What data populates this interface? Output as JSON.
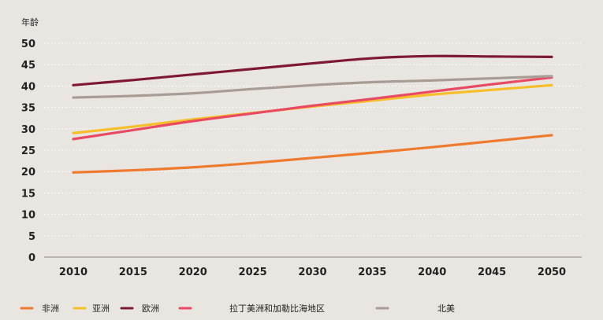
{
  "chart_data": {
    "type": "line",
    "title": "",
    "xlabel": "",
    "ylabel": "年龄",
    "x": [
      2010,
      2015,
      2020,
      2025,
      2030,
      2035,
      2040,
      2045,
      2050
    ],
    "x_ticks": [
      "2010",
      "2015",
      "2020",
      "2025",
      "2030",
      "2035",
      "2040",
      "2045",
      "2050"
    ],
    "y_ticks": [
      "0",
      "5",
      "10",
      "15",
      "20",
      "25",
      "30",
      "35",
      "40",
      "45",
      "50"
    ],
    "ylim": [
      0,
      50
    ],
    "grid": "horizontal-dotted",
    "legend_position": "bottom",
    "series": [
      {
        "name": "非洲",
        "color": "#ee7a2e",
        "values": [
          19.8,
          20.3,
          21.0,
          22.0,
          23.2,
          24.4,
          25.7,
          27.1,
          28.5
        ]
      },
      {
        "name": "亚洲",
        "color": "#f6bf2a",
        "values": [
          29.0,
          30.5,
          32.2,
          33.7,
          35.2,
          36.6,
          38.0,
          39.1,
          40.2
        ]
      },
      {
        "name": "欧洲",
        "color": "#7d1933",
        "values": [
          40.2,
          41.4,
          42.7,
          44.0,
          45.3,
          46.5,
          47.0,
          46.9,
          46.8
        ]
      },
      {
        "name": "拉丁美洲和加勒比海地区",
        "color": "#e94a63",
        "values": [
          27.6,
          29.7,
          31.8,
          33.6,
          35.4,
          37.0,
          38.7,
          40.4,
          42.0
        ]
      },
      {
        "name": "北美",
        "color": "#a89d96",
        "values": [
          37.3,
          37.7,
          38.3,
          39.3,
          40.2,
          40.9,
          41.3,
          41.8,
          42.3
        ]
      }
    ]
  }
}
